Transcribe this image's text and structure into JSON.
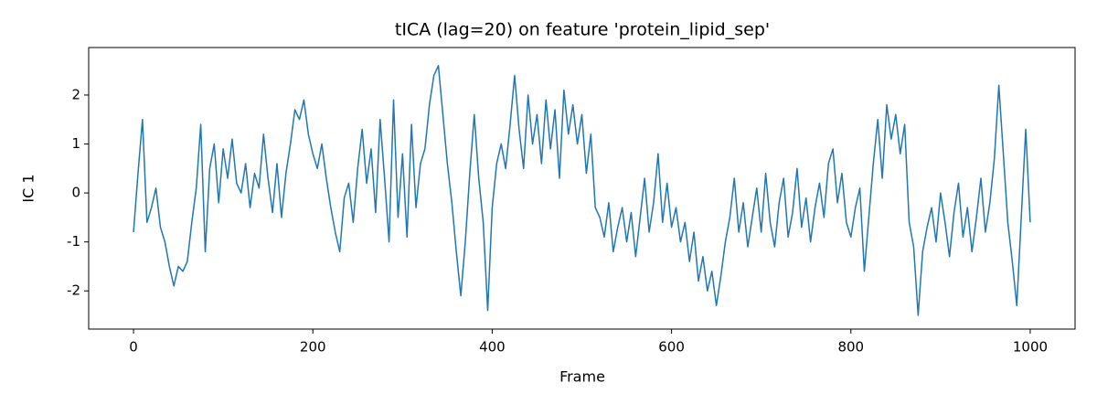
{
  "chart_data": {
    "type": "line",
    "title": "tICA (lag=20) on feature 'protein_lipid_sep'",
    "x_label": "Frame",
    "y_label": "IC 1",
    "xlim": [
      -50,
      1050
    ],
    "ylim": [
      -2.78,
      2.97
    ],
    "xticks": [
      0,
      200,
      400,
      600,
      800,
      1000
    ],
    "yticks": [
      -2,
      -1,
      0,
      1,
      2
    ],
    "grid": false,
    "x": [
      0,
      5,
      10,
      15,
      20,
      25,
      30,
      35,
      40,
      45,
      50,
      55,
      60,
      65,
      70,
      75,
      80,
      85,
      90,
      95,
      100,
      105,
      110,
      115,
      120,
      125,
      130,
      135,
      140,
      145,
      150,
      155,
      160,
      165,
      170,
      175,
      180,
      185,
      190,
      195,
      200,
      205,
      210,
      215,
      220,
      225,
      230,
      235,
      240,
      245,
      250,
      255,
      260,
      265,
      270,
      275,
      280,
      285,
      290,
      295,
      300,
      305,
      310,
      315,
      320,
      325,
      330,
      335,
      340,
      345,
      350,
      355,
      360,
      365,
      370,
      375,
      380,
      385,
      390,
      395,
      400,
      405,
      410,
      415,
      420,
      425,
      430,
      435,
      440,
      445,
      450,
      455,
      460,
      465,
      470,
      475,
      480,
      485,
      490,
      495,
      500,
      505,
      510,
      515,
      520,
      525,
      530,
      535,
      540,
      545,
      550,
      555,
      560,
      565,
      570,
      575,
      580,
      585,
      590,
      595,
      600,
      605,
      610,
      615,
      620,
      625,
      630,
      635,
      640,
      645,
      650,
      655,
      660,
      665,
      670,
      675,
      680,
      685,
      690,
      695,
      700,
      705,
      710,
      715,
      720,
      725,
      730,
      735,
      740,
      745,
      750,
      755,
      760,
      765,
      770,
      775,
      780,
      785,
      790,
      795,
      800,
      805,
      810,
      815,
      820,
      825,
      830,
      835,
      840,
      845,
      850,
      855,
      860,
      865,
      870,
      875,
      880,
      885,
      890,
      895,
      900,
      905,
      910,
      915,
      920,
      925,
      930,
      935,
      940,
      945,
      950,
      955,
      960,
      965,
      970,
      975,
      980,
      985,
      990,
      995,
      1000
    ],
    "series": [
      {
        "name": "IC 1",
        "color": "#1f77b4",
        "values": [
          -0.8,
          0.4,
          1.5,
          -0.6,
          -0.3,
          0.1,
          -0.7,
          -1.0,
          -1.5,
          -1.9,
          -1.5,
          -1.6,
          -1.4,
          -0.6,
          0.1,
          1.4,
          -1.2,
          0.5,
          1.0,
          -0.2,
          0.9,
          0.3,
          1.1,
          0.2,
          0.0,
          0.6,
          -0.3,
          0.4,
          0.1,
          1.2,
          0.3,
          -0.4,
          0.6,
          -0.5,
          0.4,
          1.0,
          1.7,
          1.5,
          1.9,
          1.2,
          0.8,
          0.5,
          1.0,
          0.3,
          -0.3,
          -0.8,
          -1.2,
          -0.1,
          0.2,
          -0.6,
          0.5,
          1.3,
          0.2,
          0.9,
          -0.4,
          1.5,
          0.3,
          -1.0,
          1.9,
          -0.5,
          0.8,
          -0.9,
          1.4,
          -0.3,
          0.6,
          0.9,
          1.8,
          2.4,
          2.6,
          1.6,
          0.6,
          -0.2,
          -1.2,
          -2.1,
          -1.0,
          0.4,
          1.6,
          0.3,
          -0.6,
          -2.4,
          -0.3,
          0.6,
          1.0,
          0.5,
          1.4,
          2.4,
          1.3,
          0.5,
          2.0,
          1.0,
          1.6,
          0.6,
          1.9,
          0.9,
          1.7,
          0.3,
          2.1,
          1.2,
          1.8,
          1.0,
          1.6,
          0.4,
          1.2,
          -0.3,
          -0.5,
          -0.9,
          -0.2,
          -1.2,
          -0.7,
          -0.3,
          -1.0,
          -0.4,
          -1.3,
          -0.5,
          0.3,
          -0.8,
          -0.2,
          0.8,
          -0.6,
          0.2,
          -0.7,
          -0.3,
          -1.0,
          -0.6,
          -1.4,
          -0.8,
          -1.8,
          -1.3,
          -2.0,
          -1.6,
          -2.3,
          -1.7,
          -1.0,
          -0.5,
          0.3,
          -0.8,
          -0.2,
          -1.1,
          -0.5,
          0.1,
          -0.8,
          0.4,
          -0.6,
          -1.1,
          -0.2,
          0.3,
          -0.9,
          -0.4,
          0.5,
          -0.7,
          -0.1,
          -1.0,
          -0.3,
          0.2,
          -0.5,
          0.6,
          0.9,
          -0.2,
          0.4,
          -0.6,
          -0.9,
          -0.3,
          0.1,
          -1.6,
          -0.5,
          0.6,
          1.5,
          0.3,
          1.8,
          1.1,
          1.6,
          0.8,
          1.4,
          -0.6,
          -1.1,
          -2.5,
          -1.2,
          -0.7,
          -0.3,
          -1.0,
          0.0,
          -0.6,
          -1.3,
          -0.4,
          0.2,
          -0.9,
          -0.3,
          -1.2,
          -0.5,
          0.3,
          -0.8,
          -0.2,
          0.7,
          2.2,
          0.8,
          -0.6,
          -1.4,
          -2.3,
          -0.5,
          1.3,
          -0.6
        ]
      }
    ]
  }
}
